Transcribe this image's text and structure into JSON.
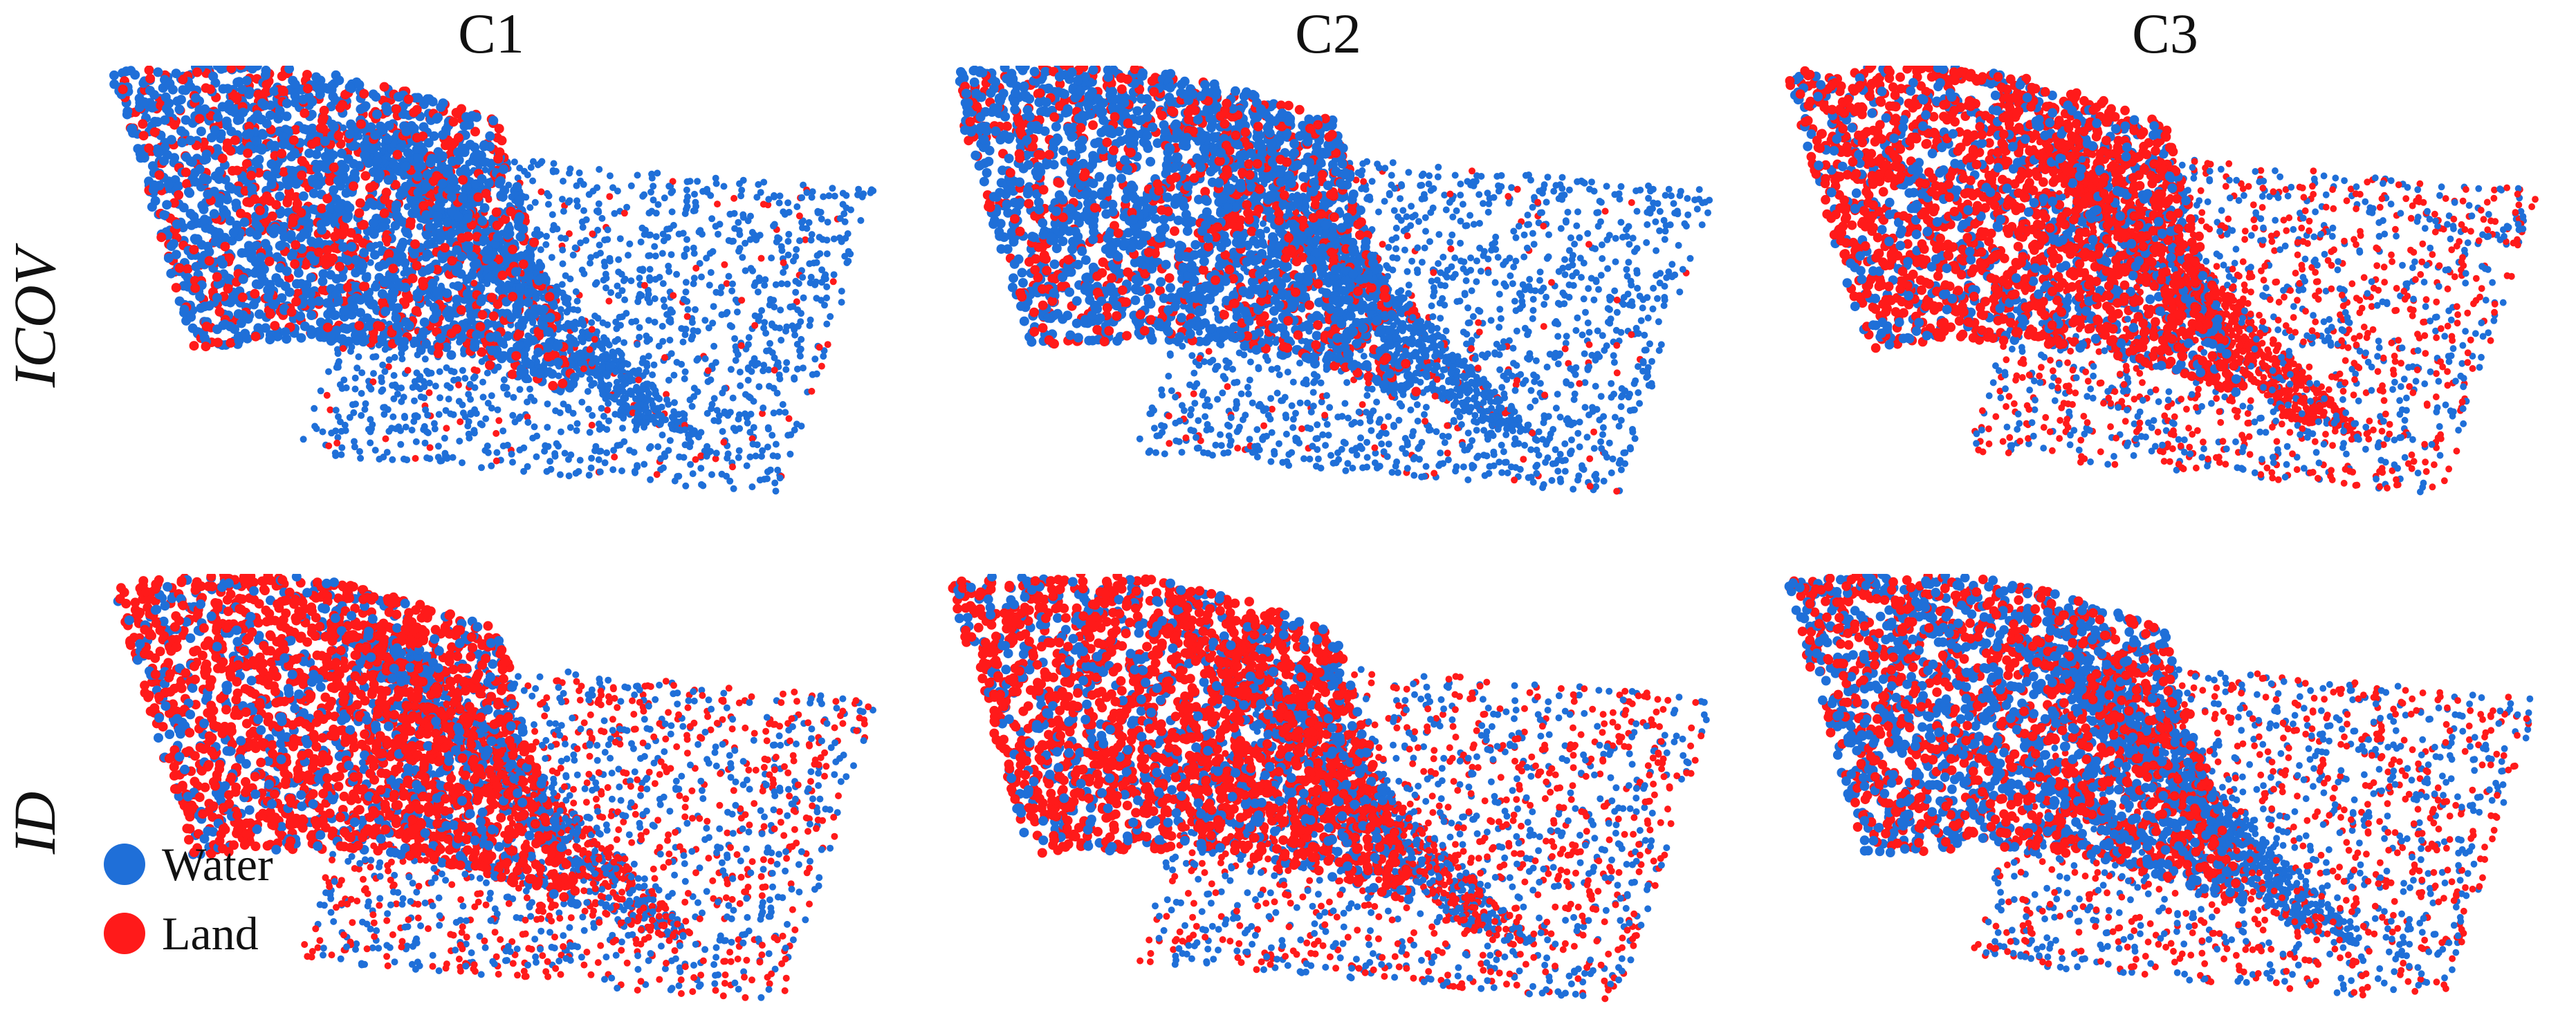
{
  "columns": [
    "C1",
    "C2",
    "C3"
  ],
  "rows": [
    "ICOV",
    "ID"
  ],
  "legend": {
    "water": {
      "label": "Water",
      "color": "#1f6fd8"
    },
    "land": {
      "label": "Land",
      "color": "#ff1a1a"
    }
  },
  "panels": [
    {
      "row": "ICOV",
      "column": "C1",
      "trees": "mostly water",
      "riverbed": "water",
      "river_core": "water"
    },
    {
      "row": "ICOV",
      "column": "C2",
      "trees": "mostly water",
      "riverbed": "water",
      "river_core": "water"
    },
    {
      "row": "ICOV",
      "column": "C3",
      "trees": "mostly land",
      "riverbed": "land",
      "river_core": "mixed"
    },
    {
      "row": "ID",
      "column": "C1",
      "trees": "mostly land",
      "riverbed": "mixed",
      "river_core": "mixed"
    },
    {
      "row": "ID",
      "column": "C2",
      "trees": "mostly land",
      "riverbed": "mixed",
      "river_core": "mixed"
    },
    {
      "row": "ID",
      "column": "C3",
      "trees": "mixed",
      "riverbed": "water",
      "river_core": "mixed"
    }
  ]
}
